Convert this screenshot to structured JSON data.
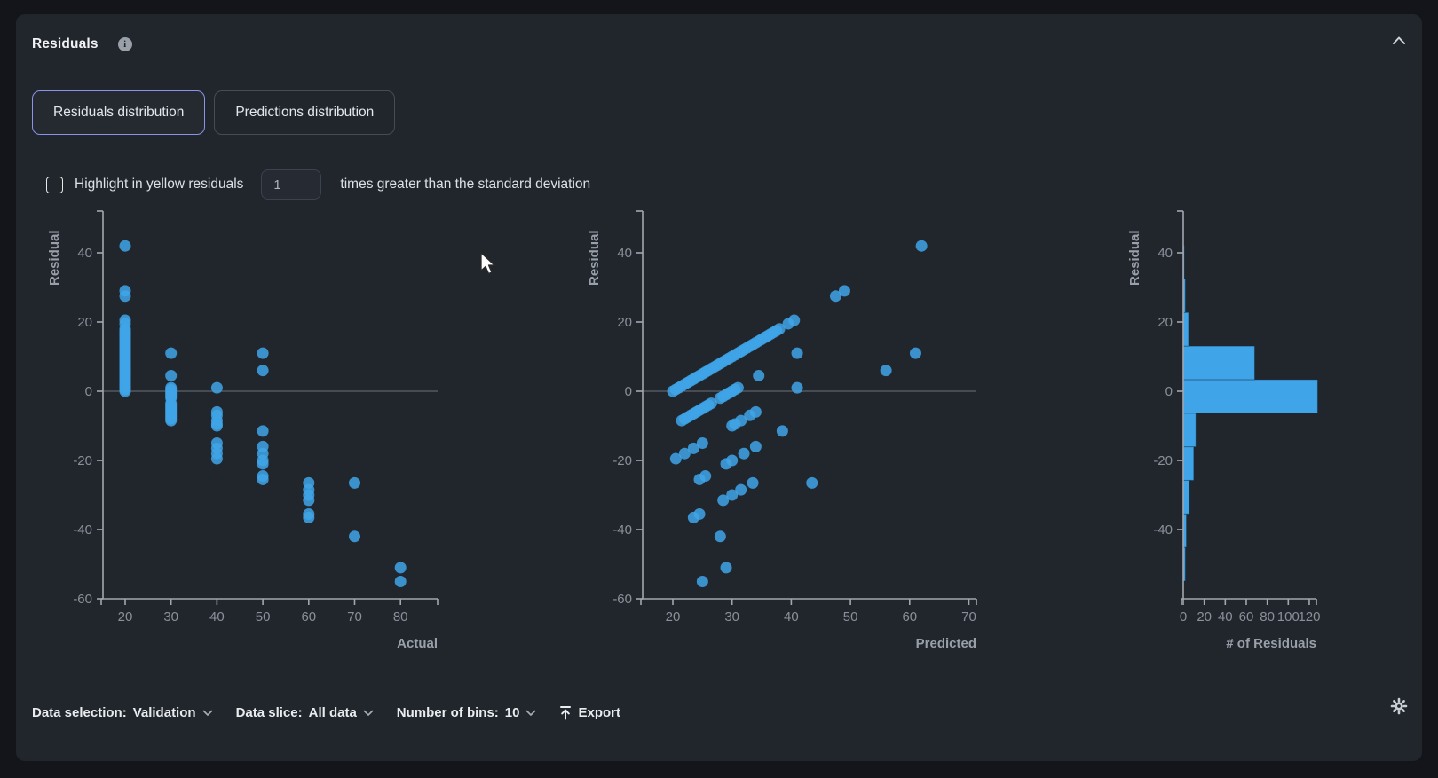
{
  "panel": {
    "title": "Residuals",
    "tabs": [
      {
        "label": "Residuals distribution",
        "active": true
      },
      {
        "label": "Predictions distribution",
        "active": false
      }
    ],
    "highlight": {
      "checked": false,
      "label": "Highlight in yellow residuals",
      "input_value": "1",
      "suffix": "times greater than the standard deviation"
    },
    "toolbar": {
      "data_selection_label": "Data selection:",
      "data_selection_value": "Validation",
      "data_slice_label": "Data slice:",
      "data_slice_value": "All data",
      "bins_label": "Number of bins:",
      "bins_value": "10",
      "export_label": "Export"
    }
  },
  "colors": {
    "point": "#3fa4e8",
    "bar": "#3fa4e8",
    "axis": "#a2a7af",
    "tick_text": "#8a9099",
    "axis_title": "#9aa0a9",
    "zero_line": "#6b717b",
    "active_tab_border": "#8b93ea",
    "panel_bg": "#21262d",
    "page_bg": "#13151a"
  },
  "chart_data": [
    {
      "type": "scatter",
      "xlabel": "Actual",
      "ylabel": "Residual",
      "x_ticks": [
        20,
        30,
        40,
        50,
        60,
        70,
        80
      ],
      "y_ticks": [
        40,
        20,
        0,
        -20,
        -40,
        -60
      ],
      "x_range": [
        14,
        88
      ],
      "y_range": [
        -63,
        52
      ],
      "zero_line": true,
      "points": [
        [
          20,
          0
        ],
        [
          20,
          0.5
        ],
        [
          20,
          1
        ],
        [
          20,
          1.5
        ],
        [
          20,
          2
        ],
        [
          20,
          2.5
        ],
        [
          20,
          3
        ],
        [
          20,
          3.5
        ],
        [
          20,
          4
        ],
        [
          20,
          4.5
        ],
        [
          20,
          5
        ],
        [
          20,
          5.5
        ],
        [
          20,
          6
        ],
        [
          20,
          6.5
        ],
        [
          20,
          7
        ],
        [
          20,
          7.5
        ],
        [
          20,
          8
        ],
        [
          20,
          8.5
        ],
        [
          20,
          9
        ],
        [
          20,
          9.5
        ],
        [
          20,
          10
        ],
        [
          20,
          10.5
        ],
        [
          20,
          11
        ],
        [
          20,
          11.5
        ],
        [
          20,
          12
        ],
        [
          20,
          12.5
        ],
        [
          20,
          13
        ],
        [
          20,
          13.5
        ],
        [
          20,
          14
        ],
        [
          20,
          14.5
        ],
        [
          20,
          15
        ],
        [
          20,
          15.5
        ],
        [
          20,
          16
        ],
        [
          20,
          16.5
        ],
        [
          20,
          17
        ],
        [
          20,
          17.5
        ],
        [
          20,
          18
        ],
        [
          20,
          19.5
        ],
        [
          20,
          20.5
        ],
        [
          20,
          27.5
        ],
        [
          20,
          29
        ],
        [
          20,
          42
        ],
        [
          30,
          11
        ],
        [
          30,
          4.5
        ],
        [
          30,
          1
        ],
        [
          30,
          0.5
        ],
        [
          30,
          0
        ],
        [
          30,
          -0.5
        ],
        [
          30,
          -1
        ],
        [
          30,
          -1.5
        ],
        [
          30,
          -2
        ],
        [
          30,
          -3.5
        ],
        [
          30,
          -4
        ],
        [
          30,
          -4.5
        ],
        [
          30,
          -5
        ],
        [
          30,
          -5.5
        ],
        [
          30,
          -6
        ],
        [
          30,
          -6.5
        ],
        [
          30,
          -7
        ],
        [
          30,
          -7.5
        ],
        [
          30,
          -8
        ],
        [
          30,
          -8.5
        ],
        [
          40,
          1
        ],
        [
          40,
          -6
        ],
        [
          40,
          -7
        ],
        [
          40,
          -8.5
        ],
        [
          40,
          -9.5
        ],
        [
          40,
          -10
        ],
        [
          40,
          -15
        ],
        [
          40,
          -16.5
        ],
        [
          40,
          -18
        ],
        [
          40,
          -19.5
        ],
        [
          50,
          11
        ],
        [
          50,
          6
        ],
        [
          50,
          -11.5
        ],
        [
          50,
          -16
        ],
        [
          50,
          -18
        ],
        [
          50,
          -20
        ],
        [
          50,
          -21
        ],
        [
          50,
          -24.5
        ],
        [
          50,
          -25.5
        ],
        [
          60,
          -26.5
        ],
        [
          60,
          -28.5
        ],
        [
          60,
          -30
        ],
        [
          60,
          -31.5
        ],
        [
          60,
          -35.5
        ],
        [
          60,
          -36.5
        ],
        [
          70,
          -26.5
        ],
        [
          70,
          -42
        ],
        [
          80,
          -51
        ],
        [
          80,
          -55
        ]
      ]
    },
    {
      "type": "scatter",
      "xlabel": "Predicted",
      "ylabel": "Residual",
      "x_ticks": [
        20,
        30,
        40,
        50,
        60,
        70
      ],
      "y_ticks": [
        40,
        20,
        0,
        -20,
        -40,
        -60
      ],
      "x_range": [
        15,
        71
      ],
      "y_range": [
        -63,
        52
      ],
      "zero_line": true,
      "points": [
        [
          20,
          0
        ],
        [
          20.5,
          0.5
        ],
        [
          21,
          1
        ],
        [
          21.5,
          1.5
        ],
        [
          22,
          2
        ],
        [
          22.5,
          2.5
        ],
        [
          23,
          3
        ],
        [
          23.5,
          3.5
        ],
        [
          24,
          4
        ],
        [
          24.5,
          4.5
        ],
        [
          25,
          5
        ],
        [
          25.5,
          5.5
        ],
        [
          26,
          6
        ],
        [
          26.5,
          6.5
        ],
        [
          27,
          7
        ],
        [
          27.5,
          7.5
        ],
        [
          28,
          8
        ],
        [
          28.5,
          8.5
        ],
        [
          29,
          9
        ],
        [
          29.5,
          9.5
        ],
        [
          30,
          10
        ],
        [
          30.5,
          10.5
        ],
        [
          31,
          11
        ],
        [
          31.5,
          11.5
        ],
        [
          32,
          12
        ],
        [
          32.5,
          12.5
        ],
        [
          33,
          13
        ],
        [
          33.5,
          13.5
        ],
        [
          34,
          14
        ],
        [
          34.5,
          14.5
        ],
        [
          35,
          15
        ],
        [
          35.5,
          15.5
        ],
        [
          36,
          16
        ],
        [
          36.5,
          16.5
        ],
        [
          37,
          17
        ],
        [
          37.5,
          17.5
        ],
        [
          38,
          18
        ],
        [
          39.5,
          19.5
        ],
        [
          40.5,
          20.5
        ],
        [
          47.5,
          27.5
        ],
        [
          49,
          29
        ],
        [
          62,
          42
        ],
        [
          41,
          11
        ],
        [
          34.5,
          4.5
        ],
        [
          31,
          1
        ],
        [
          30.5,
          0.5
        ],
        [
          30,
          0
        ],
        [
          29.5,
          -0.5
        ],
        [
          29,
          -1
        ],
        [
          28.5,
          -1.5
        ],
        [
          28,
          -2
        ],
        [
          26.5,
          -3.5
        ],
        [
          26,
          -4
        ],
        [
          25.5,
          -4.5
        ],
        [
          25,
          -5
        ],
        [
          24.5,
          -5.5
        ],
        [
          24,
          -6
        ],
        [
          23.5,
          -6.5
        ],
        [
          23,
          -7
        ],
        [
          22.5,
          -7.5
        ],
        [
          22,
          -8
        ],
        [
          21.5,
          -8.5
        ],
        [
          41,
          1
        ],
        [
          34,
          -6
        ],
        [
          33,
          -7
        ],
        [
          31.5,
          -8.5
        ],
        [
          30.5,
          -9.5
        ],
        [
          30,
          -10
        ],
        [
          25,
          -15
        ],
        [
          23.5,
          -16.5
        ],
        [
          22,
          -18
        ],
        [
          20.5,
          -19.5
        ],
        [
          61,
          11
        ],
        [
          56,
          6
        ],
        [
          38.5,
          -11.5
        ],
        [
          34,
          -16
        ],
        [
          32,
          -18
        ],
        [
          30,
          -20
        ],
        [
          29,
          -21
        ],
        [
          25.5,
          -24.5
        ],
        [
          24.5,
          -25.5
        ],
        [
          33.5,
          -26.5
        ],
        [
          31.5,
          -28.5
        ],
        [
          30,
          -30
        ],
        [
          28.5,
          -31.5
        ],
        [
          24.5,
          -35.5
        ],
        [
          23.5,
          -36.5
        ],
        [
          43.5,
          -26.5
        ],
        [
          28,
          -42
        ],
        [
          29,
          -51
        ],
        [
          25,
          -55
        ]
      ]
    },
    {
      "type": "histogram-horizontal",
      "xlabel": "# of Residuals",
      "ylabel": "Residual",
      "x_ticks": [
        0,
        20,
        40,
        60,
        80,
        100,
        120
      ],
      "y_ticks": [
        40,
        20,
        0,
        -20,
        -40
      ],
      "x_range": [
        0,
        127
      ],
      "y_range": [
        -63,
        52
      ],
      "zero_line": false,
      "bin_edges": [
        -54.85,
        -45.15,
        -35.45,
        -25.75,
        -16.05,
        -6.35,
        3.35,
        13.05,
        22.75,
        32.45,
        42.15
      ],
      "counts": [
        2,
        3,
        6,
        10,
        12,
        128,
        68,
        5,
        2,
        1
      ]
    }
  ]
}
